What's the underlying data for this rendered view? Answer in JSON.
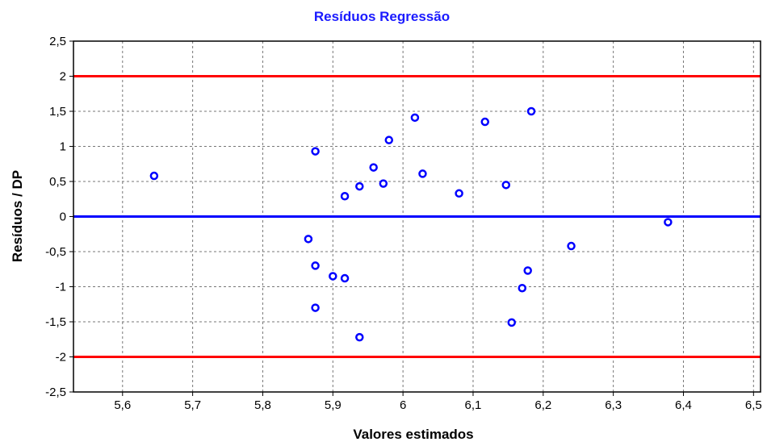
{
  "chart_data": {
    "type": "scatter",
    "title": "Resíduos Regressão",
    "xlabel": "Valores estimados",
    "ylabel": "Resíduos / DP",
    "xlim": [
      5.53,
      6.51
    ],
    "ylim": [
      -2.5,
      2.5
    ],
    "x_ticks": [
      "5,6",
      "5,7",
      "5,8",
      "5,9",
      "6",
      "6,1",
      "6,2",
      "6,3",
      "6,4",
      "6,5"
    ],
    "x_tick_values": [
      5.6,
      5.7,
      5.8,
      5.9,
      6.0,
      6.1,
      6.2,
      6.3,
      6.4,
      6.5
    ],
    "y_ticks": [
      "2,5",
      "2",
      "1,5",
      "1",
      "0,5",
      "0",
      "-0,5",
      "-1",
      "-1,5",
      "-2",
      "-2,5"
    ],
    "y_tick_values": [
      2.5,
      2,
      1.5,
      1,
      0.5,
      0,
      -0.5,
      -1,
      -1.5,
      -2,
      -2.5
    ],
    "grid": true,
    "reference_lines": [
      {
        "y": 2,
        "color": "#ff0000"
      },
      {
        "y": -2,
        "color": "#ff0000"
      },
      {
        "y": 0,
        "color": "#0000ff"
      }
    ],
    "marker_color": "#0000ff",
    "points": [
      {
        "x": 5.645,
        "y": 0.58
      },
      {
        "x": 5.865,
        "y": -0.32
      },
      {
        "x": 5.875,
        "y": 0.93
      },
      {
        "x": 5.875,
        "y": -0.7
      },
      {
        "x": 5.875,
        "y": -1.3
      },
      {
        "x": 5.9,
        "y": -0.85
      },
      {
        "x": 5.917,
        "y": 0.29
      },
      {
        "x": 5.917,
        "y": -0.88
      },
      {
        "x": 5.938,
        "y": 0.43
      },
      {
        "x": 5.938,
        "y": -1.72
      },
      {
        "x": 5.958,
        "y": 0.7
      },
      {
        "x": 5.972,
        "y": 0.47
      },
      {
        "x": 5.98,
        "y": 1.09
      },
      {
        "x": 6.017,
        "y": 1.41
      },
      {
        "x": 6.028,
        "y": 0.61
      },
      {
        "x": 6.08,
        "y": 0.33
      },
      {
        "x": 6.117,
        "y": 1.35
      },
      {
        "x": 6.147,
        "y": 0.45
      },
      {
        "x": 6.155,
        "y": -1.51
      },
      {
        "x": 6.17,
        "y": -1.02
      },
      {
        "x": 6.178,
        "y": -0.77
      },
      {
        "x": 6.183,
        "y": 1.5
      },
      {
        "x": 6.24,
        "y": -0.42
      },
      {
        "x": 6.378,
        "y": -0.08
      }
    ]
  }
}
